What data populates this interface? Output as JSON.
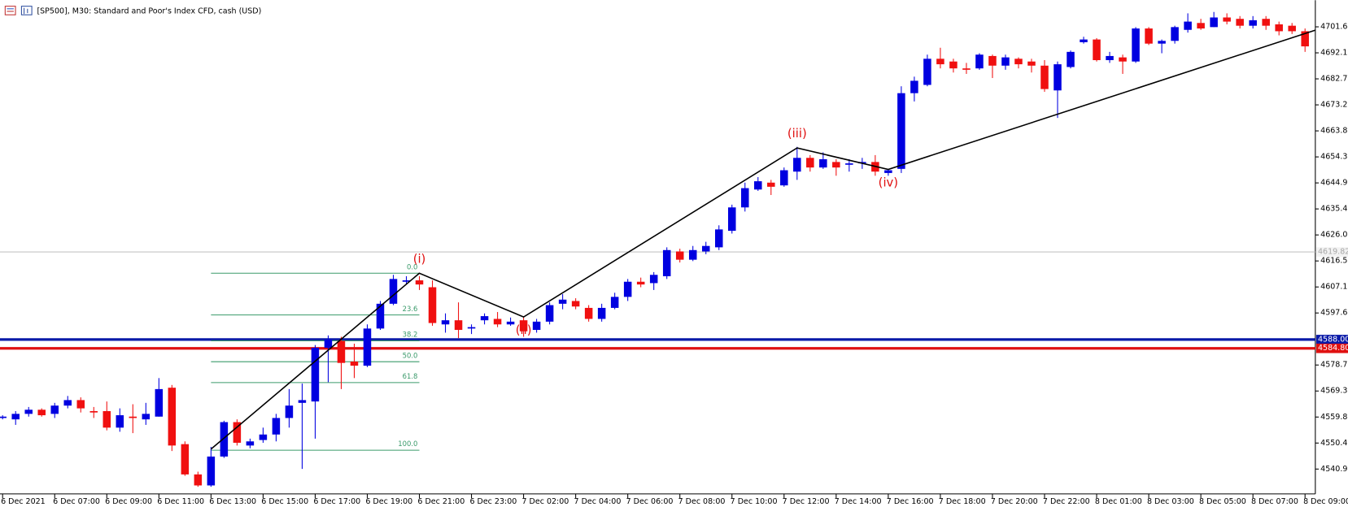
{
  "chart_data": {
    "type": "candlestick",
    "title": "[SP500], M30:  Standard and Poor's Index CFD, cash (USD)",
    "categories": [
      "6 Dec 2021",
      null,
      null,
      null,
      "6 Dec 07:00",
      null,
      null,
      null,
      "6 Dec 09:00",
      null,
      null,
      null,
      "6 Dec 11:00",
      null,
      null,
      null,
      "6 Dec 13:00",
      null,
      null,
      null,
      "6 Dec 15:00",
      null,
      null,
      null,
      "6 Dec 17:00",
      null,
      null,
      null,
      "6 Dec 19:00",
      null,
      null,
      null,
      "6 Dec 21:00",
      null,
      null,
      null,
      "6 Dec 23:00",
      null,
      null,
      null,
      "7 Dec 02:00",
      null,
      null,
      null,
      "7 Dec 04:00",
      null,
      null,
      null,
      "7 Dec 06:00",
      null,
      null,
      null,
      "7 Dec 08:00",
      null,
      null,
      null,
      "7 Dec 10:00",
      null,
      null,
      null,
      "7 Dec 12:00",
      null,
      null,
      null,
      "7 Dec 14:00",
      null,
      null,
      null,
      "7 Dec 16:00",
      null,
      null,
      null,
      "7 Dec 18:00",
      null,
      null,
      null,
      "7 Dec 20:00",
      null,
      null,
      null,
      "7 Dec 22:00",
      null,
      null,
      null,
      "8 Dec 01:00",
      null,
      null,
      null,
      "8 Dec 03:00",
      null,
      null,
      null,
      "8 Dec 05:00",
      null,
      null,
      null,
      "8 Dec 07:00",
      null,
      null,
      null,
      "8 Dec 09:00"
    ],
    "open": [
      4559.5,
      4559,
      4561,
      4562.5,
      4561,
      4564,
      4566,
      4562,
      4562,
      4556,
      4560,
      4559,
      4560,
      4570.5,
      4550,
      4539,
      4535,
      4545.5,
      4558,
      4549.5,
      4551.5,
      4553.5,
      4559.5,
      4565,
      4565.5,
      4585,
      4587.5,
      4580,
      4578.5,
      4592,
      4601,
      4609,
      4609.5,
      4607,
      4593.5,
      4595,
      4592,
      4595,
      4595.5,
      4593.5,
      4595,
      4591.5,
      4594.5,
      4601,
      4602,
      4599.5,
      4595.5,
      4599.5,
      4603.5,
      4609,
      4608.5,
      4611,
      4620,
      4617,
      4620,
      4621.5,
      4627.5,
      4636,
      4642.5,
      4645,
      4644,
      4649,
      4654,
      4650.5,
      4652.5,
      4651.5,
      4652,
      4652.5,
      4648.5,
      4650,
      4677.5,
      4680.5,
      4690,
      4689,
      4686.5,
      4686.5,
      4691,
      4687.5,
      4690,
      4689,
      4687.5,
      4678.5,
      4687,
      4696,
      4697,
      4689.5,
      4690.5,
      4689,
      4701,
      4695.5,
      4696.5,
      4700.5,
      4703,
      4701.5,
      4705,
      4704.5,
      4702,
      4704.5,
      4702.5,
      4702,
      4700
    ],
    "high": [
      4560.5,
      4562,
      4563.5,
      4563,
      4565,
      4567.5,
      4567,
      4563.5,
      4565.5,
      4563,
      4564.5,
      4565,
      4574,
      4571.5,
      4551,
      4540,
      4549,
      4558.5,
      4559,
      4552,
      4556,
      4561,
      4570,
      4572,
      4586,
      4589.5,
      4589,
      4586.5,
      4593.5,
      4602,
      4611.5,
      4611,
      4611,
      4609.5,
      4597.5,
      4601.5,
      4593.5,
      4597.5,
      4598,
      4596,
      4596.5,
      4595.5,
      4601.5,
      4604.5,
      4603,
      4600.5,
      4601,
      4605,
      4610,
      4610.5,
      4612.5,
      4621.5,
      4621,
      4622,
      4623.5,
      4629.5,
      4637,
      4645,
      4647,
      4646,
      4650.5,
      4658,
      4655,
      4656,
      4653.5,
      4653.5,
      4654,
      4655,
      4650,
      4680,
      4683.5,
      4691.5,
      4694,
      4690,
      4688.5,
      4692,
      4691.5,
      4691.5,
      4690.5,
      4690,
      4689.5,
      4689,
      4693,
      4698,
      4697.5,
      4692.5,
      4691.5,
      4701.5,
      4701.5,
      4697,
      4702,
      4706.5,
      4704.5,
      4707,
      4706.5,
      4705.5,
      4705.5,
      4705.5,
      4703.5,
      4703,
      4701
    ],
    "low": [
      4559,
      4557,
      4560,
      4560,
      4559.5,
      4563,
      4561.5,
      4559.5,
      4555,
      4554.5,
      4554,
      4557,
      4560,
      4547.5,
      4538.5,
      4534.5,
      4534.5,
      4545,
      4549.5,
      4548.5,
      4550.5,
      4551,
      4556,
      4541,
      4552,
      4572.5,
      4570,
      4574,
      4578,
      4591.5,
      4600.5,
      4608,
      4606,
      4593,
      4590.5,
      4588.5,
      4590,
      4593.5,
      4592.5,
      4593,
      4589,
      4590.5,
      4593.5,
      4599,
      4599,
      4594.5,
      4594.5,
      4599,
      4602,
      4607,
      4606,
      4610,
      4616,
      4616.5,
      4619,
      4620.5,
      4626.5,
      4634.5,
      4642,
      4640.5,
      4643.5,
      4646,
      4649,
      4650,
      4647.5,
      4649,
      4650,
      4647.5,
      4647.5,
      4648.5,
      4674.5,
      4680,
      4686.5,
      4685,
      4684.5,
      4686,
      4683,
      4686,
      4686.5,
      4685,
      4678,
      4668.5,
      4686.5,
      4695.5,
      4689,
      4688.5,
      4684.5,
      4688.5,
      4695,
      4692,
      4695.5,
      4699.5,
      4700.5,
      4701.5,
      4702.5,
      4701,
      4701,
      4700.5,
      4698.5,
      4699,
      4692.5
    ],
    "close": [
      4560,
      4561,
      4562.5,
      4560.5,
      4564,
      4566,
      4563,
      4561.5,
      4556,
      4560.5,
      4559.5,
      4561,
      4570,
      4549.5,
      4539,
      4535,
      4545.5,
      4558,
      4550.5,
      4551,
      4553.5,
      4559.5,
      4564,
      4566,
      4585,
      4588,
      4579.5,
      4578.5,
      4592,
      4601,
      4610,
      4609.5,
      4608,
      4594,
      4595,
      4591.5,
      4592.5,
      4596.5,
      4593.5,
      4594.5,
      4591,
      4594.5,
      4600.5,
      4602.5,
      4600,
      4595.5,
      4599.5,
      4603.5,
      4609,
      4608,
      4611.5,
      4620.5,
      4617,
      4620.5,
      4622,
      4628,
      4636,
      4643,
      4645.5,
      4643.5,
      4649.5,
      4654,
      4650.5,
      4653.5,
      4650.5,
      4652,
      4652.5,
      4649,
      4649.5,
      4677.5,
      4682,
      4690,
      4688,
      4686.5,
      4686,
      4691.5,
      4687.5,
      4690.5,
      4688,
      4687.5,
      4679,
      4688,
      4692.5,
      4697,
      4689.5,
      4691,
      4689,
      4701,
      4695.5,
      4696.5,
      4701.5,
      4703.5,
      4701,
      4705,
      4703.5,
      4702,
      4704,
      4702,
      4700,
      4700,
      4694.5
    ],
    "up_color": "#0000e0",
    "down_color": "#f01010",
    "xlim": [
      -0.2,
      100.79
    ],
    "ylim": [
      4531.92,
      4711.27
    ],
    "yticks": [
      {
        "value": 4701.6,
        "label": "4701.60"
      },
      4692.15,
      {
        "value": 4682.7,
        "label": "4682.70"
      },
      4673.25,
      {
        "value": 4663.8,
        "label": "4663.80"
      },
      4654.35,
      {
        "value": 4644.9,
        "label": "4644.90"
      },
      4635.45,
      {
        "value": 4626,
        "label": "4626.00"
      },
      4616.55,
      {
        "value": 4607.1,
        "label": "4607.10"
      },
      4597.65,
      4578.75,
      {
        "value": 4569.3,
        "label": "4569.30"
      },
      4559.85,
      {
        "value": 4550.4,
        "label": "4550.40"
      },
      4540.95
    ],
    "hlines": [
      {
        "value": 4619.82,
        "label": "4619.82",
        "color": "#c4c4c4"
      },
      {
        "value": 4588,
        "label": "4588.00",
        "color": "#0a1aa8"
      },
      {
        "value": 4584.8,
        "label": "4584.80",
        "color": "#e01010"
      }
    ],
    "wave": {
      "x": [
        16,
        32,
        40,
        61,
        68,
        100.79
      ],
      "y": [
        4548.2,
        4612.1,
        4596.2,
        4657.6,
        4649.8,
        4700.4
      ],
      "labels": [
        "(i)",
        "(ii)",
        "(iii)",
        "(iv)"
      ],
      "color": "#000000",
      "label_color": "#e01010"
    },
    "fib": {
      "x": [
        16,
        32
      ],
      "high": 4612.1,
      "low": 4547.8,
      "color": "#3a9a6a",
      "levels": [
        {
          "value": 0,
          "label": "0.0"
        },
        23.6,
        38.2,
        {
          "value": 50,
          "label": "50.0"
        },
        61.8,
        {
          "value": 100,
          "label": "100.0"
        }
      ]
    }
  }
}
